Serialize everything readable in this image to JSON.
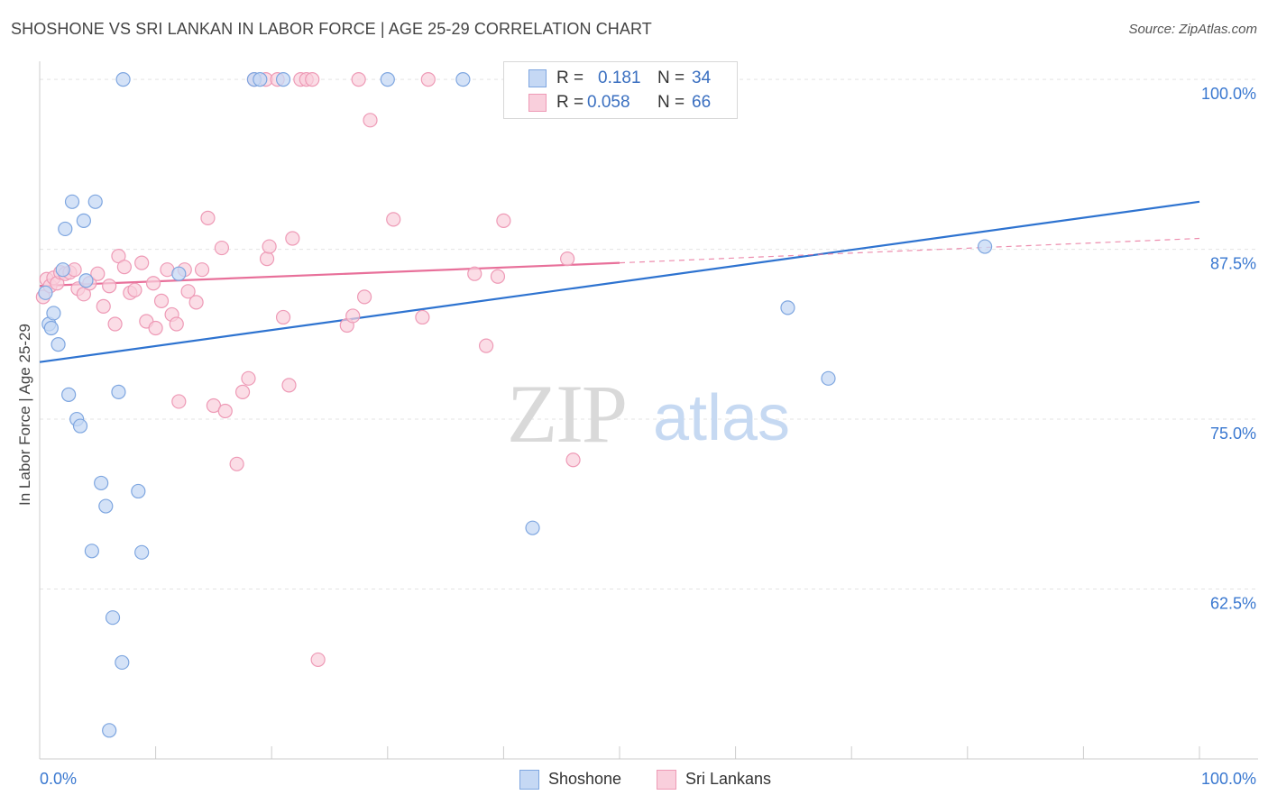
{
  "header": {
    "title": "SHOSHONE VS SRI LANKAN IN LABOR FORCE | AGE 25-29 CORRELATION CHART",
    "source": "Source: ZipAtlas.com"
  },
  "watermark": {
    "zip": "ZIP",
    "atlas": "atlas"
  },
  "legend_top": {
    "rows": [
      {
        "r_label": "R =",
        "r_value": "0.181",
        "n_label": "N =",
        "n_value": "34",
        "color": "#a9c6f0"
      },
      {
        "r_label": "R =",
        "r_value": "0.058",
        "n_label": "N =",
        "n_value": "66",
        "color": "#f6b9cc"
      }
    ]
  },
  "legend_bottom": {
    "items": [
      {
        "label": "Shoshone",
        "color": "#a9c6f0"
      },
      {
        "label": "Sri Lankans",
        "color": "#f6b9cc"
      }
    ]
  },
  "chart_data": {
    "type": "scatter",
    "title": "SHOSHONE VS SRI LANKAN IN LABOR FORCE | AGE 25-29 CORRELATION CHART",
    "xlabel": "",
    "ylabel": "In Labor Force | Age 25-29",
    "xlim": [
      0,
      100
    ],
    "ylim": [
      50,
      101.2
    ],
    "x_tick_labels": [
      "0.0%",
      "100.0%"
    ],
    "y_ticks": [
      62.5,
      75.0,
      87.5,
      100.0
    ],
    "y_tick_labels": [
      "62.5%",
      "75.0%",
      "87.5%",
      "100.0%"
    ],
    "grid": true,
    "legend_position": "top-center",
    "colors": {
      "shoshone": "#6fa0e8",
      "sri_lankans": "#f08fb0",
      "shoshone_line": "#2e73d0",
      "sri_lankans_line": "#e8709a",
      "axis_label": "#3a78d0"
    },
    "series": [
      {
        "name": "Shoshone",
        "r": 0.181,
        "n": 34,
        "points": [
          [
            0.5,
            84.3
          ],
          [
            0.8,
            82.0
          ],
          [
            1.0,
            81.7
          ],
          [
            1.2,
            82.8
          ],
          [
            1.6,
            80.5
          ],
          [
            2.0,
            86.0
          ],
          [
            2.2,
            89.0
          ],
          [
            2.5,
            76.8
          ],
          [
            2.8,
            91.0
          ],
          [
            3.2,
            75.0
          ],
          [
            3.5,
            74.5
          ],
          [
            3.8,
            89.6
          ],
          [
            4.0,
            85.2
          ],
          [
            4.5,
            65.3
          ],
          [
            4.8,
            91.0
          ],
          [
            5.3,
            70.3
          ],
          [
            5.7,
            68.6
          ],
          [
            6.3,
            60.4
          ],
          [
            6.8,
            77.0
          ],
          [
            7.1,
            57.1
          ],
          [
            7.2,
            100.0
          ],
          [
            8.5,
            69.7
          ],
          [
            8.8,
            65.2
          ],
          [
            6.0,
            52.1
          ],
          [
            12.0,
            85.7
          ],
          [
            18.5,
            100.0
          ],
          [
            19.0,
            100.0
          ],
          [
            21.0,
            100.0
          ],
          [
            30.0,
            100.0
          ],
          [
            36.5,
            100.0
          ],
          [
            42.5,
            67.0
          ],
          [
            64.5,
            83.2
          ],
          [
            68.0,
            78.0
          ],
          [
            81.5,
            87.7
          ]
        ],
        "trend": {
          "x": [
            0,
            100
          ],
          "y": [
            79.2,
            91.0
          ]
        }
      },
      {
        "name": "Sri Lankans",
        "r": 0.058,
        "n": 66,
        "points": [
          [
            0.3,
            84.0
          ],
          [
            0.6,
            85.3
          ],
          [
            0.9,
            84.8
          ],
          [
            1.2,
            85.4
          ],
          [
            1.5,
            85.0
          ],
          [
            1.8,
            85.8
          ],
          [
            2.2,
            85.7
          ],
          [
            2.6,
            85.8
          ],
          [
            3.0,
            86.0
          ],
          [
            3.3,
            84.6
          ],
          [
            3.8,
            84.2
          ],
          [
            4.3,
            85.0
          ],
          [
            5.0,
            85.7
          ],
          [
            5.5,
            83.3
          ],
          [
            6.0,
            84.8
          ],
          [
            6.5,
            82.0
          ],
          [
            6.8,
            87.0
          ],
          [
            7.3,
            86.2
          ],
          [
            7.8,
            84.3
          ],
          [
            8.2,
            84.5
          ],
          [
            8.8,
            86.5
          ],
          [
            9.2,
            82.2
          ],
          [
            9.8,
            85.0
          ],
          [
            10.0,
            81.7
          ],
          [
            10.5,
            83.7
          ],
          [
            11.0,
            86.0
          ],
          [
            11.4,
            82.7
          ],
          [
            11.8,
            82.0
          ],
          [
            12.0,
            76.3
          ],
          [
            12.5,
            86.0
          ],
          [
            12.8,
            84.4
          ],
          [
            13.5,
            83.6
          ],
          [
            14.0,
            86.0
          ],
          [
            14.5,
            89.8
          ],
          [
            15.0,
            76.0
          ],
          [
            15.7,
            87.6
          ],
          [
            16.0,
            75.6
          ],
          [
            17.0,
            71.7
          ],
          [
            17.5,
            77.0
          ],
          [
            18.0,
            78.0
          ],
          [
            18.5,
            100.0
          ],
          [
            19.5,
            100.0
          ],
          [
            19.6,
            86.8
          ],
          [
            19.8,
            87.7
          ],
          [
            20.5,
            100.0
          ],
          [
            21.0,
            82.5
          ],
          [
            21.5,
            77.5
          ],
          [
            21.8,
            88.3
          ],
          [
            22.5,
            100.0
          ],
          [
            23.0,
            100.0
          ],
          [
            23.5,
            100.0
          ],
          [
            24.0,
            57.3
          ],
          [
            26.5,
            81.9
          ],
          [
            27.0,
            82.6
          ],
          [
            27.5,
            100.0
          ],
          [
            28.0,
            84.0
          ],
          [
            28.5,
            97.0
          ],
          [
            30.5,
            89.7
          ],
          [
            33.0,
            82.5
          ],
          [
            33.5,
            100.0
          ],
          [
            37.5,
            85.7
          ],
          [
            38.5,
            80.4
          ],
          [
            39.5,
            85.5
          ],
          [
            40.0,
            89.6
          ],
          [
            45.5,
            86.8
          ],
          [
            46.0,
            72.0
          ]
        ],
        "trend": {
          "x": [
            0,
            50
          ],
          "y": [
            84.8,
            86.5
          ]
        },
        "trend_dashed": {
          "x": [
            50,
            100
          ],
          "y": [
            86.5,
            88.3
          ]
        }
      }
    ]
  }
}
